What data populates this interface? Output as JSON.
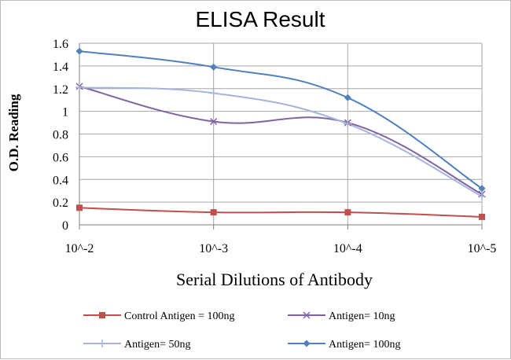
{
  "chart_data": {
    "type": "line",
    "title": "ELISA Result",
    "xlabel": "Serial Dilutions  of Antibody",
    "ylabel": "O.D. Reading",
    "categories": [
      "10^-2",
      "10^-3",
      "10^-4",
      "10^-5"
    ],
    "ylim": [
      0,
      1.6
    ],
    "yticks": [
      "0",
      "0.2",
      "0.4",
      "0.6",
      "0.8",
      "1",
      "1.2",
      "1.4",
      "1.6"
    ],
    "grid": "horizontal",
    "legend_position": "bottom",
    "series": [
      {
        "name": "Control Antigen = 100ng",
        "values": [
          0.15,
          0.11,
          0.11,
          0.07
        ],
        "color": "#c0504d",
        "marker": "square"
      },
      {
        "name": "Antigen= 10ng",
        "values": [
          1.22,
          0.91,
          0.9,
          0.27
        ],
        "color": "#8064a2",
        "marker": "x"
      },
      {
        "name": "Antigen= 50ng",
        "values": [
          1.21,
          1.16,
          0.89,
          0.25
        ],
        "color": "#a6b4dc",
        "marker": "plus"
      },
      {
        "name": "Antigen= 100ng",
        "values": [
          1.53,
          1.39,
          1.12,
          0.32
        ],
        "color": "#4f81bd",
        "marker": "diamond"
      }
    ]
  }
}
